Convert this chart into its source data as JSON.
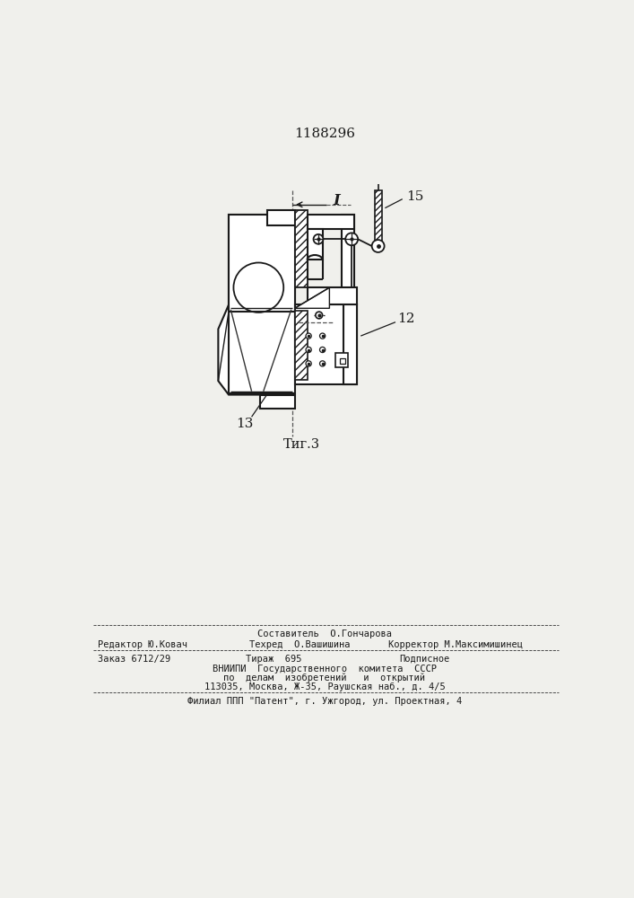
{
  "title": "1188296",
  "fig_label": "Τиг.3",
  "label_1": "I",
  "label_12": "12",
  "label_13": "13",
  "label_15": "15",
  "bg_color": "#f0f0ec",
  "line_color": "#1a1a1a",
  "footer_line1": "Составитель  О.Гончарова",
  "footer_line2_left": "Редактор Ю.Ковач",
  "footer_line2_mid": "Техред  О.Вашишина",
  "footer_line2_right": "Корректор М.Максимишинец",
  "footer_line3_left": "Заказ 6712/29",
  "footer_line3_mid": "Тираж  695",
  "footer_line3_right": "Подписное",
  "footer_line4": "ВНИИПИ  Государственного  комитета  СССР",
  "footer_line5": "по  делам  изобретений   и  открытий",
  "footer_line6": "113035, Москва, Ж-35, Раушская наб., д. 4/5",
  "footer_line7": "Филиал ППП \"Патент\", г. Ужгород, ул. Проектная, 4"
}
